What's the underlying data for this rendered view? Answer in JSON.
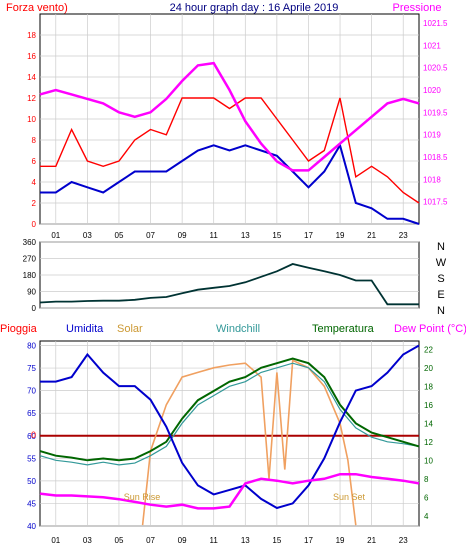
{
  "title": "24 hour graph day : 16 Aprile 2019",
  "chart_data": [
    {
      "type": "line",
      "panel": "top",
      "title": "24 hour graph day : 16 Aprile 2019",
      "left_label": "Forza vento)",
      "right_label": "Pressione",
      "x_ticks": [
        "01",
        "03",
        "05",
        "07",
        "09",
        "11",
        "13",
        "15",
        "17",
        "19",
        "21",
        "23"
      ],
      "left_ticks": [
        0,
        2,
        4,
        6,
        8,
        10,
        12,
        14,
        16,
        18
      ],
      "right_ticks": [
        "1017.5",
        "1018",
        "1018.5",
        "1019",
        "1019.5",
        "1020",
        "1020.5",
        "1021",
        "1021.5"
      ],
      "ylim_left": [
        0,
        20
      ],
      "ylim_right": [
        1017,
        1021.7
      ],
      "grid": true,
      "colors": {
        "gust": "#ff0000",
        "speed": "#0000cc",
        "pressure": "#ff00ff",
        "left_label": "#ff0000",
        "right_label": "#ff00ff",
        "title": "#000080"
      },
      "x": [
        0,
        1,
        2,
        3,
        4,
        5,
        6,
        7,
        8,
        9,
        10,
        11,
        12,
        13,
        14,
        15,
        16,
        17,
        18,
        19,
        20,
        21,
        22,
        23,
        24
      ],
      "series": [
        {
          "key": "gust",
          "values": [
            5.5,
            5.5,
            9,
            6,
            5.5,
            6,
            8,
            9,
            8.5,
            12,
            12,
            12,
            11,
            12,
            12,
            10,
            8,
            6,
            7,
            12,
            4.5,
            5.5,
            4.5,
            3,
            2
          ]
        },
        {
          "key": "speed",
          "values": [
            3,
            3,
            4,
            3.5,
            3,
            4,
            5,
            5,
            5,
            6,
            7,
            7.5,
            7,
            7.5,
            7,
            6.5,
            5,
            3.5,
            5,
            7.5,
            2,
            1.5,
            0.5,
            0.5,
            0
          ]
        },
        {
          "key": "pressure",
          "values": [
            1019.9,
            1020.0,
            1019.9,
            1019.8,
            1019.7,
            1019.5,
            1019.4,
            1019.5,
            1019.8,
            1020.2,
            1020.55,
            1020.6,
            1020.0,
            1019.3,
            1018.8,
            1018.4,
            1018.2,
            1018.2,
            1018.5,
            1018.8,
            1019.1,
            1019.4,
            1019.7,
            1019.8,
            1019.7
          ]
        }
      ]
    },
    {
      "type": "line",
      "panel": "middle",
      "y_ticks": [
        0,
        90,
        180,
        270,
        360
      ],
      "right_labels": [
        "N",
        "W",
        "S",
        "E",
        "N"
      ],
      "ylim": [
        0,
        360
      ],
      "colors": {
        "direction": "#003333"
      },
      "x": [
        0,
        1,
        2,
        3,
        4,
        5,
        6,
        7,
        8,
        9,
        10,
        11,
        12,
        13,
        14,
        15,
        16,
        17,
        18,
        19,
        20,
        21,
        22,
        23,
        24
      ],
      "series": [
        {
          "key": "direction",
          "values": [
            30,
            35,
            35,
            38,
            40,
            40,
            45,
            55,
            60,
            80,
            100,
            110,
            120,
            140,
            170,
            200,
            240,
            220,
            200,
            180,
            150,
            150,
            20,
            20,
            20
          ]
        }
      ]
    },
    {
      "type": "line",
      "panel": "bottom",
      "legend": [
        "Pioggia",
        "Umidita",
        "Solar",
        "Windchill",
        "Temperatura",
        "Dew Point (°C)"
      ],
      "legend_colors": [
        "#ff0000",
        "#0000cc",
        "#cc9933",
        "#339999",
        "#006600",
        "#ff00ff"
      ],
      "left_ticks": [
        40,
        45,
        50,
        55,
        60,
        65,
        70,
        75,
        80
      ],
      "right_ticks": [
        4,
        6,
        8,
        10,
        12,
        14,
        16,
        18,
        20,
        22
      ],
      "rain_marker": "0",
      "ylim_left": [
        40,
        81
      ],
      "ylim_right": [
        2.9,
        22.9
      ],
      "annotations": [
        "Sun Rise",
        "Sun Set"
      ],
      "grid": true,
      "x": [
        0,
        1,
        2,
        3,
        4,
        5,
        6,
        7,
        8,
        9,
        10,
        11,
        12,
        13,
        14,
        15,
        16,
        17,
        18,
        19,
        20,
        21,
        22,
        23,
        24
      ],
      "series": [
        {
          "key": "humidity",
          "values": [
            72,
            72,
            73,
            78,
            74,
            71,
            71,
            68,
            62,
            54,
            49,
            47,
            48,
            49,
            46,
            44,
            45,
            49,
            55,
            63,
            70,
            71,
            74,
            78,
            80
          ]
        },
        {
          "key": "temperature",
          "values": [
            11,
            10.5,
            10.3,
            10,
            10.2,
            10,
            10.2,
            11,
            12,
            14.5,
            16.5,
            17.5,
            18.5,
            19,
            20,
            20.5,
            21,
            20.5,
            19,
            16,
            14,
            13,
            12.5,
            12,
            11.5
          ]
        },
        {
          "key": "windchill",
          "values": [
            10.5,
            10,
            9.8,
            9.5,
            9.8,
            9.5,
            9.7,
            10.5,
            11.5,
            14,
            16,
            17,
            18,
            18.5,
            19.5,
            20,
            20.5,
            20,
            18.5,
            15.5,
            13.5,
            12.5,
            12,
            11.8,
            11.5
          ]
        },
        {
          "key": "dew_point",
          "values": [
            6.4,
            6.2,
            6.2,
            6.1,
            6.0,
            5.8,
            5.5,
            5.2,
            5.0,
            5.2,
            4.8,
            4.8,
            5.0,
            7.5,
            8.0,
            7.8,
            7.5,
            7.8,
            8.0,
            8.5,
            8.5,
            8.2,
            8.0,
            7.8,
            7.5
          ]
        },
        {
          "key": "rain",
          "values": [
            0,
            0,
            0,
            0,
            0,
            0,
            0,
            0,
            0,
            0,
            0,
            0,
            0,
            0,
            0,
            0,
            0,
            0,
            0,
            0,
            0,
            0,
            0,
            0,
            0
          ]
        },
        {
          "key": "solar",
          "x": [
            6.5,
            7,
            8,
            9,
            10,
            11,
            12,
            13,
            14,
            14.5,
            15,
            15.5,
            16,
            17,
            18,
            19,
            19.5,
            20
          ],
          "values": [
            3,
            11,
            16,
            19,
            19.5,
            20,
            20.3,
            20.5,
            19,
            8,
            19.5,
            9,
            20.8,
            20,
            18,
            14,
            10,
            3
          ]
        }
      ]
    }
  ]
}
